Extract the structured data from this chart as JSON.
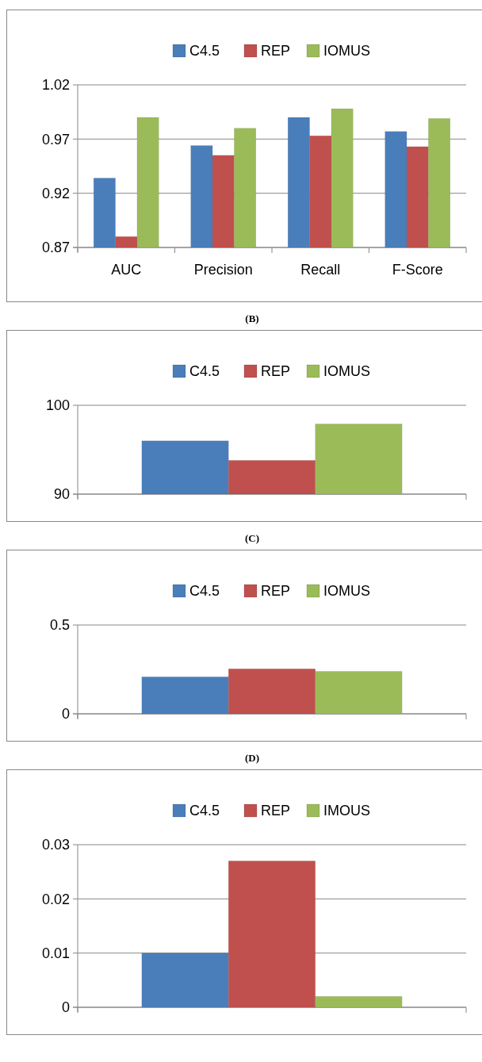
{
  "chart_data": [
    {
      "type": "bar",
      "categories": [
        "AUC",
        "Precision",
        "Recall",
        "F-Score"
      ],
      "series": [
        {
          "name": "C4.5",
          "color": "#4a7ebb",
          "values": [
            0.934,
            0.964,
            0.99,
            0.977
          ]
        },
        {
          "name": "REP",
          "color": "#c0504d",
          "values": [
            0.88,
            0.955,
            0.973,
            0.963
          ]
        },
        {
          "name": "IOMUS",
          "color": "#9bbb59",
          "values": [
            0.99,
            0.98,
            0.998,
            0.989
          ]
        }
      ],
      "ylim": [
        0.87,
        1.02
      ],
      "yticks": [
        0.87,
        0.92,
        0.97,
        1.02
      ],
      "grid": "y",
      "legend": "top"
    },
    {
      "type": "bar",
      "title": "(B)",
      "categories": [
        null
      ],
      "series": [
        {
          "name": "C4.5",
          "color": "#4a7ebb",
          "values": [
            96.0
          ]
        },
        {
          "name": "REP",
          "color": "#c0504d",
          "values": [
            93.8
          ]
        },
        {
          "name": "IOMUS",
          "color": "#9bbb59",
          "values": [
            97.9
          ]
        }
      ],
      "ylim": [
        90,
        100
      ],
      "yticks": [
        90,
        100
      ],
      "grid": "y",
      "legend": "top"
    },
    {
      "type": "bar",
      "title": "(C)",
      "categories": [
        null
      ],
      "series": [
        {
          "name": "C4.5",
          "color": "#4a7ebb",
          "values": [
            0.208
          ]
        },
        {
          "name": "REP",
          "color": "#c0504d",
          "values": [
            0.253
          ]
        },
        {
          "name": "IOMUS",
          "color": "#9bbb59",
          "values": [
            0.239
          ]
        }
      ],
      "ylim": [
        0,
        0.5
      ],
      "yticks": [
        0,
        0.5
      ],
      "grid": "y",
      "legend": "top"
    },
    {
      "type": "bar",
      "title": "(D)",
      "categories": [
        null
      ],
      "series": [
        {
          "name": "C4.5",
          "color": "#4a7ebb",
          "values": [
            0.01
          ]
        },
        {
          "name": "REP",
          "color": "#c0504d",
          "values": [
            0.027
          ]
        },
        {
          "name": "IMOUS",
          "color": "#9bbb59",
          "values": [
            0.002
          ]
        }
      ],
      "ylim": [
        0,
        0.03
      ],
      "yticks": [
        0,
        0.01,
        0.02,
        0.03
      ],
      "grid": "y",
      "legend": "top"
    }
  ]
}
